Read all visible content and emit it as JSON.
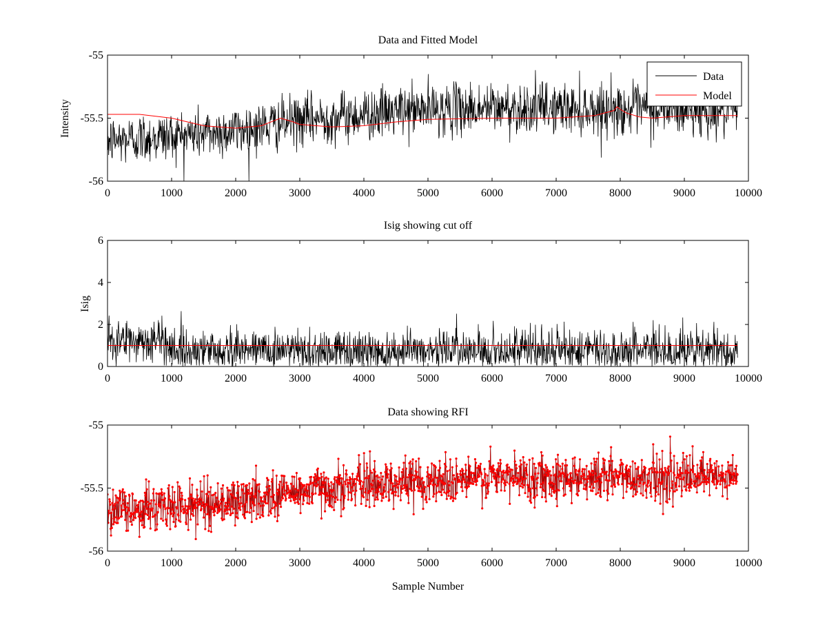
{
  "figure": {
    "background": "#ffffff",
    "xlabel": "Sample Number"
  },
  "chart_data": [
    {
      "type": "line",
      "title": "Data and Fitted Model",
      "xlabel": "",
      "ylabel": "Intensity",
      "xlim": [
        0,
        10000
      ],
      "ylim": [
        -56,
        -55
      ],
      "xticks": [
        0,
        1000,
        2000,
        3000,
        4000,
        5000,
        6000,
        7000,
        8000,
        9000,
        10000
      ],
      "yticks": [
        -56,
        -55.5,
        -55
      ],
      "ytick_labels": [
        "-56",
        "-55.5",
        "-55"
      ],
      "x_extent": [
        0,
        9830
      ],
      "grid": false,
      "legend": {
        "position": "top-right",
        "entries": [
          "Data",
          "Model"
        ]
      },
      "series": [
        {
          "name": "Data",
          "color": "#000000",
          "style": "noisy-line",
          "trend_x": [
            0,
            1000,
            2000,
            3000,
            4000,
            5000,
            6000,
            7000,
            8000,
            9000,
            9830
          ],
          "trend_y": [
            -55.68,
            -55.64,
            -55.6,
            -55.52,
            -55.47,
            -55.43,
            -55.42,
            -55.42,
            -55.43,
            -55.44,
            -55.45
          ],
          "noise_sd": 0.1
        },
        {
          "name": "Model",
          "color": "#ff0000",
          "style": "line",
          "x": [
            0,
            500,
            1000,
            1500,
            2000,
            2400,
            2600,
            2700,
            2900,
            3000,
            3500,
            4000,
            4500,
            5000,
            6000,
            7000,
            7600,
            7900,
            7950,
            8000,
            8100,
            8300,
            8500,
            9000,
            9830
          ],
          "y": [
            -55.47,
            -55.47,
            -55.5,
            -55.56,
            -55.58,
            -55.56,
            -55.52,
            -55.5,
            -55.53,
            -55.55,
            -55.57,
            -55.56,
            -55.53,
            -55.51,
            -55.5,
            -55.5,
            -55.48,
            -55.44,
            -55.41,
            -55.43,
            -55.46,
            -55.49,
            -55.5,
            -55.48,
            -55.48
          ]
        }
      ]
    },
    {
      "type": "line",
      "title": "Isig showing cut off",
      "xlabel": "",
      "ylabel": "Isig",
      "xlim": [
        0,
        10000
      ],
      "ylim": [
        0,
        6
      ],
      "xticks": [
        0,
        1000,
        2000,
        3000,
        4000,
        5000,
        6000,
        7000,
        8000,
        9000,
        10000
      ],
      "yticks": [
        0,
        2,
        4,
        6
      ],
      "ytick_labels": [
        "0",
        "2",
        "4",
        "6"
      ],
      "x_extent": [
        0,
        9830
      ],
      "grid": false,
      "series": [
        {
          "name": "",
          "color": "#000000",
          "style": "noisy-line",
          "trend_x": [
            0,
            900,
            1100,
            9830
          ],
          "trend_y": [
            1.2,
            1.2,
            0.75,
            0.75
          ],
          "noise_sd": 0.55
        },
        {
          "name": "",
          "color": "#ff0000",
          "style": "line",
          "x": [
            0,
            9830
          ],
          "y": [
            1,
            1
          ]
        }
      ]
    },
    {
      "type": "line",
      "title": "Data showing RFI",
      "xlabel": "Sample Number",
      "ylabel": "",
      "xlim": [
        0,
        10000
      ],
      "ylim": [
        -56,
        -55
      ],
      "xticks": [
        0,
        1000,
        2000,
        3000,
        4000,
        5000,
        6000,
        7000,
        8000,
        9000,
        10000
      ],
      "yticks": [
        -56,
        -55.5,
        -55
      ],
      "ytick_labels": [
        "-56",
        "-55.5",
        "-55"
      ],
      "x_extent": [
        0,
        9830
      ],
      "grid": false,
      "series": [
        {
          "name": "",
          "color": "#000000",
          "style": "noisy-line",
          "trend_x": [
            0,
            1000,
            2000,
            3000,
            4000,
            5000,
            6000,
            7000,
            8000,
            9000,
            9830
          ],
          "trend_y": [
            -55.68,
            -55.65,
            -55.61,
            -55.52,
            -55.47,
            -55.44,
            -55.42,
            -55.41,
            -55.41,
            -55.42,
            -55.42
          ],
          "noise_sd": 0.09
        },
        {
          "name": "",
          "color": "#ff0000",
          "style": "markers",
          "marker": "dot",
          "trend_x": [
            0,
            1000,
            2000,
            3000,
            4000,
            5000,
            6000,
            7000,
            8000,
            9000,
            9830
          ],
          "trend_y": [
            -55.68,
            -55.65,
            -55.61,
            -55.52,
            -55.47,
            -55.44,
            -55.42,
            -55.41,
            -55.41,
            -55.42,
            -55.42
          ],
          "noise_sd": 0.09
        }
      ]
    }
  ]
}
